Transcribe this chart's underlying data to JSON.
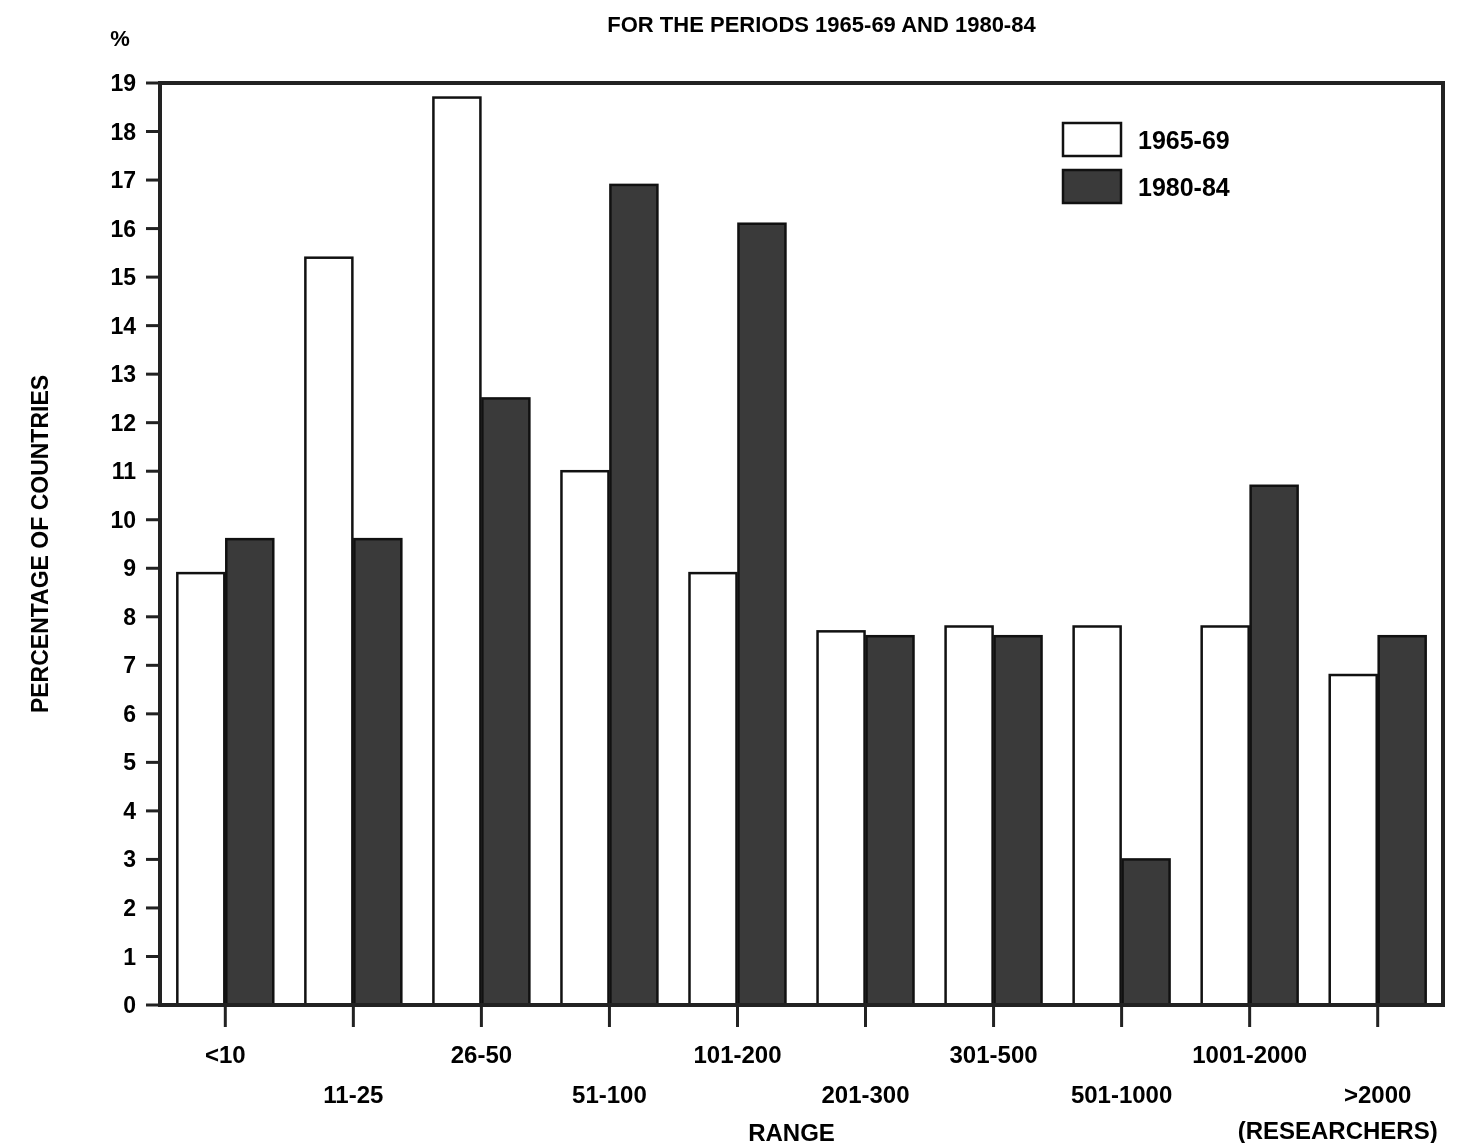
{
  "chart_data": {
    "type": "bar",
    "title": "FOR THE PERIODS 1965-69 AND 1980-84",
    "xlabel": "RANGE",
    "ylabel": "PERCENTAGE OF COUNTRIES",
    "annotations": [
      "%",
      "(RESEARCHERS)"
    ],
    "categories": [
      "<10",
      "11-25",
      "26-50",
      "51-100",
      "101-200",
      "201-300",
      "301-500",
      "501-1000",
      "1001-2000",
      ">2000"
    ],
    "series": [
      {
        "name": "1965-69",
        "color": "#ffffff",
        "values": [
          8.9,
          15.4,
          18.7,
          11.0,
          8.9,
          7.7,
          7.8,
          7.8,
          7.8,
          6.8
        ]
      },
      {
        "name": "1980-84",
        "color": "#3a3a3a",
        "values": [
          9.6,
          9.6,
          12.5,
          16.9,
          16.1,
          7.6,
          7.6,
          3.0,
          10.7,
          7.6
        ]
      }
    ],
    "ylim": [
      0,
      19
    ],
    "yticks": [
      0,
      1,
      2,
      3,
      4,
      5,
      6,
      7,
      8,
      9,
      10,
      11,
      12,
      13,
      14,
      15,
      16,
      17,
      18,
      19
    ],
    "grid": false,
    "legend": "top right"
  }
}
